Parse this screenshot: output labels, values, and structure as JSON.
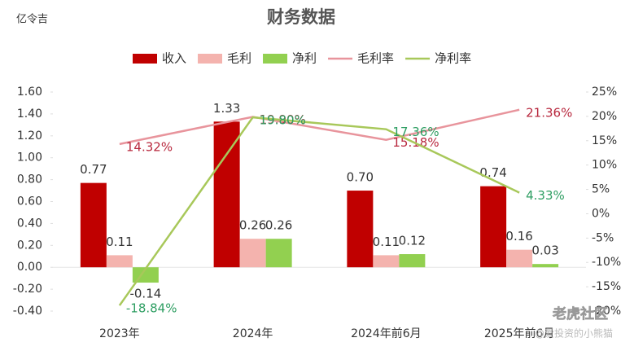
{
  "corner_text": "亿令吉",
  "watermark": [
    "老虎社区",
    "@爱投资的小熊猫"
  ],
  "chart_data": {
    "type": "bar",
    "title": "财务数据",
    "legend": "top",
    "categories": [
      "2023年",
      "2024年",
      "2024年前6月",
      "2025年前6月"
    ],
    "series": [
      {
        "name": "收入",
        "type": "bar",
        "color": "#c00000",
        "values": [
          0.77,
          1.33,
          0.7,
          0.74
        ],
        "value_labels": [
          "0.77",
          "1.33",
          "0.70",
          "0.74"
        ]
      },
      {
        "name": "毛利",
        "type": "bar",
        "color": "#f4b3ae",
        "values": [
          0.11,
          0.26,
          0.11,
          0.16
        ],
        "value_labels": [
          "0.11",
          "0.26",
          "0.11",
          "0.16"
        ]
      },
      {
        "name": "净利",
        "type": "bar",
        "color": "#92d050",
        "values": [
          -0.14,
          0.26,
          0.12,
          0.03
        ],
        "value_labels": [
          "-0.14",
          "0.26",
          "0.12",
          "0.03"
        ]
      },
      {
        "name": "毛利率",
        "type": "line",
        "axis": "y2",
        "color": "#e8949c",
        "label_color": "#b8283e",
        "values": [
          14.32,
          19.9,
          15.18,
          21.36
        ],
        "value_labels": [
          "14.32%",
          "19.90%",
          "15.18%",
          "21.36%"
        ]
      },
      {
        "name": "净利率",
        "type": "line",
        "axis": "y2",
        "color": "#a8c85a",
        "label_color": "#2e9e62",
        "values": [
          -18.84,
          19.8,
          17.36,
          4.33
        ],
        "value_labels": [
          "-18.84%",
          "19.80%",
          "17.36%",
          "4.33%"
        ]
      }
    ],
    "ylim": [
      -0.4,
      1.6
    ],
    "yticks": [
      {
        "value": -0.4,
        "label": "-0.40"
      },
      {
        "value": -0.2,
        "label": "-0.20"
      },
      {
        "value": 0,
        "label": "0.00"
      },
      {
        "value": 0.2,
        "label": "0.20"
      },
      {
        "value": 0.4,
        "label": "0.40"
      },
      {
        "value": 0.6,
        "label": "0.60"
      },
      {
        "value": 0.8,
        "label": "0.80"
      },
      {
        "value": 1.0,
        "label": "1.00"
      },
      {
        "value": 1.2,
        "label": "1.20"
      },
      {
        "value": 1.4,
        "label": "1.40"
      },
      {
        "value": 1.6,
        "label": "1.60"
      }
    ],
    "y2lim": [
      -20,
      25
    ],
    "y2ticks": [
      {
        "value": -20,
        "label": "-20%"
      },
      {
        "value": -15,
        "label": "-15%"
      },
      {
        "value": -10,
        "label": "-10%"
      },
      {
        "value": -5,
        "label": "-5%"
      },
      {
        "value": 0,
        "label": "0%"
      },
      {
        "value": 5,
        "label": "5%"
      },
      {
        "value": 10,
        "label": "10%"
      },
      {
        "value": 15,
        "label": "15%"
      },
      {
        "value": 20,
        "label": "20%"
      },
      {
        "value": 25,
        "label": "25%"
      }
    ]
  }
}
